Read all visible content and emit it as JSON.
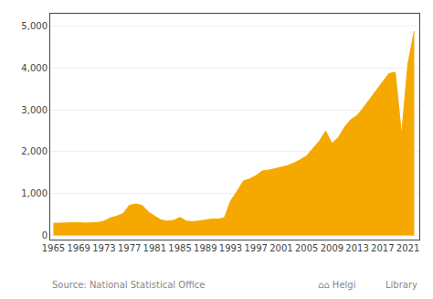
{
  "chart_data": {
    "type": "area",
    "x": [
      1965,
      1966,
      1967,
      1968,
      1969,
      1970,
      1971,
      1972,
      1973,
      1974,
      1975,
      1976,
      1977,
      1978,
      1979,
      1980,
      1981,
      1982,
      1983,
      1984,
      1985,
      1986,
      1987,
      1988,
      1989,
      1990,
      1991,
      1992,
      1993,
      1994,
      1995,
      1996,
      1997,
      1998,
      1999,
      2000,
      2001,
      2002,
      2003,
      2004,
      2005,
      2006,
      2007,
      2008,
      2009,
      2010,
      2011,
      2012,
      2013,
      2014,
      2015,
      2016,
      2017,
      2018,
      2019,
      2020,
      2021,
      2022
    ],
    "values": [
      290,
      295,
      300,
      310,
      305,
      295,
      295,
      310,
      340,
      420,
      460,
      520,
      720,
      750,
      720,
      560,
      460,
      370,
      340,
      360,
      430,
      340,
      330,
      340,
      370,
      390,
      390,
      420,
      830,
      1050,
      1300,
      1350,
      1430,
      1540,
      1560,
      1590,
      1630,
      1670,
      1730,
      1810,
      1900,
      2080,
      2250,
      2490,
      2200,
      2340,
      2590,
      2770,
      2870,
      3060,
      3260,
      3480,
      3680,
      3870,
      3900,
      2400,
      4100,
      4883
    ],
    "color": "#F5A800",
    "xlim": [
      1964.5,
      2022.8
    ],
    "xticks": [
      1965,
      1969,
      1973,
      1977,
      1981,
      1985,
      1989,
      1993,
      1997,
      2001,
      2005,
      2009,
      2013,
      2017,
      2021
    ],
    "ylim": [
      -100,
      5300
    ],
    "yticks": [
      0,
      {
        "value": 1000,
        "label": "1,000"
      },
      {
        "value": 2000,
        "label": "2,000"
      },
      {
        "value": 3000,
        "label": "3,000"
      },
      {
        "value": 4000,
        "label": "4,000"
      },
      {
        "value": 5000,
        "label": "5,000"
      }
    ],
    "grid": true,
    "annotations": [
      "Source: National Statistical Office",
      "⌂⌂ Helgi",
      "Library"
    ]
  }
}
